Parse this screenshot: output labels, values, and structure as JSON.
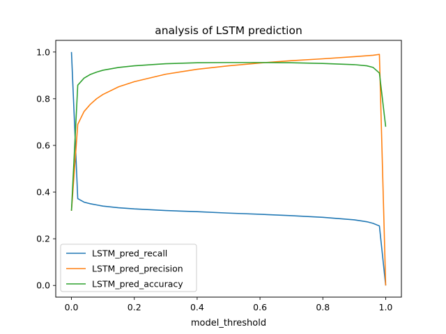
{
  "chart_data": {
    "type": "line",
    "title": "analysis of LSTM prediction",
    "xlabel": "model_threshold",
    "ylabel": "",
    "xlim": [
      -0.05,
      1.05
    ],
    "ylim": [
      -0.05,
      1.05
    ],
    "xticks": [
      0.0,
      0.2,
      0.4,
      0.6,
      0.8,
      1.0
    ],
    "xtick_labels": [
      "0.0",
      "0.2",
      "0.4",
      "0.6",
      "0.8",
      "1.0"
    ],
    "yticks": [
      0.0,
      0.2,
      0.4,
      0.6,
      0.8,
      1.0
    ],
    "ytick_labels": [
      "0.0",
      "0.2",
      "0.4",
      "0.6",
      "0.8",
      "1.0"
    ],
    "grid": false,
    "legend_position": "lower-left",
    "series": [
      {
        "name": "LSTM_pred_recall",
        "color": "#1f77b4",
        "x": [
          0.0,
          0.02,
          0.04,
          0.06,
          0.08,
          0.1,
          0.15,
          0.2,
          0.3,
          0.4,
          0.5,
          0.6,
          0.7,
          0.8,
          0.9,
          0.94,
          0.96,
          0.98,
          1.0
        ],
        "y": [
          1.0,
          0.372,
          0.357,
          0.35,
          0.345,
          0.34,
          0.333,
          0.328,
          0.321,
          0.316,
          0.31,
          0.305,
          0.299,
          0.292,
          0.281,
          0.273,
          0.266,
          0.255,
          0.0
        ]
      },
      {
        "name": "LSTM_pred_precision",
        "color": "#ff7f0e",
        "x": [
          0.0,
          0.02,
          0.04,
          0.06,
          0.08,
          0.1,
          0.15,
          0.2,
          0.3,
          0.4,
          0.5,
          0.6,
          0.7,
          0.8,
          0.9,
          0.96,
          0.98,
          1.0
        ],
        "y": [
          0.32,
          0.69,
          0.745,
          0.776,
          0.8,
          0.818,
          0.851,
          0.873,
          0.905,
          0.926,
          0.941,
          0.953,
          0.963,
          0.971,
          0.98,
          0.986,
          0.99,
          0.0
        ]
      },
      {
        "name": "LSTM_pred_accuracy",
        "color": "#2ca02c",
        "x": [
          0.0,
          0.02,
          0.04,
          0.06,
          0.08,
          0.1,
          0.15,
          0.2,
          0.3,
          0.4,
          0.5,
          0.6,
          0.7,
          0.8,
          0.9,
          0.94,
          0.96,
          0.98,
          1.0
        ],
        "y": [
          0.32,
          0.858,
          0.888,
          0.904,
          0.914,
          0.922,
          0.934,
          0.941,
          0.95,
          0.954,
          0.955,
          0.955,
          0.954,
          0.951,
          0.946,
          0.941,
          0.934,
          0.91,
          0.68
        ]
      }
    ]
  }
}
